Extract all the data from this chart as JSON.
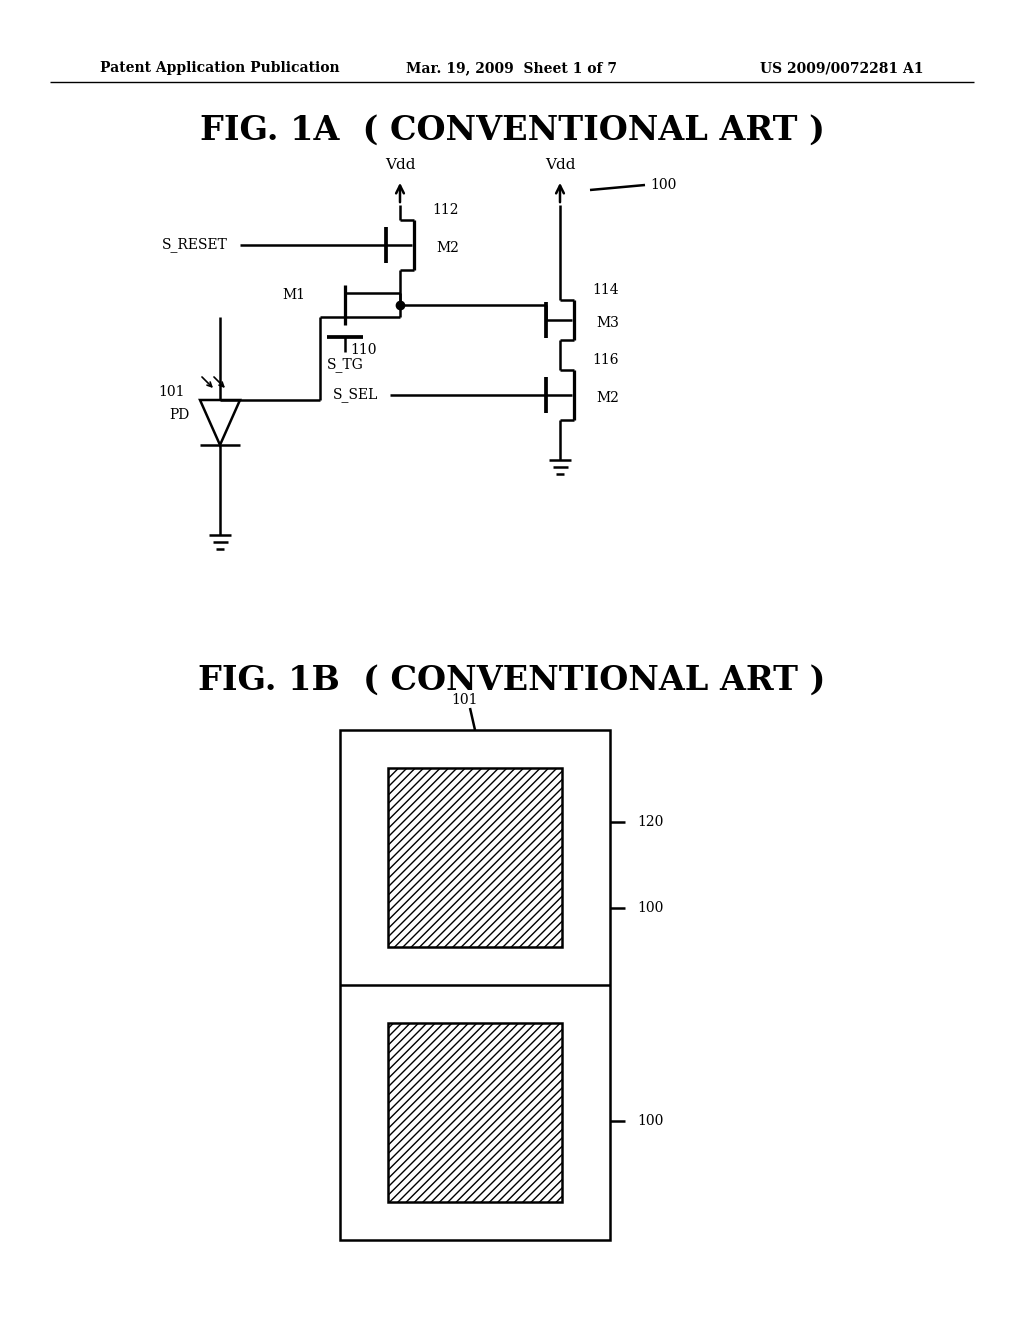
{
  "bg_color": "#ffffff",
  "header_left": "Patent Application Publication",
  "header_mid": "Mar. 19, 2009  Sheet 1 of 7",
  "header_right": "US 2009/0072281 A1",
  "fig1a_title": "FIG. 1A",
  "fig1a_subtitle": "( CONVENTIONAL ART )",
  "fig1b_title": "FIG. 1B",
  "fig1b_subtitle": "( CONVENTIONAL ART )",
  "line_color": "#000000",
  "line_width": 1.8
}
